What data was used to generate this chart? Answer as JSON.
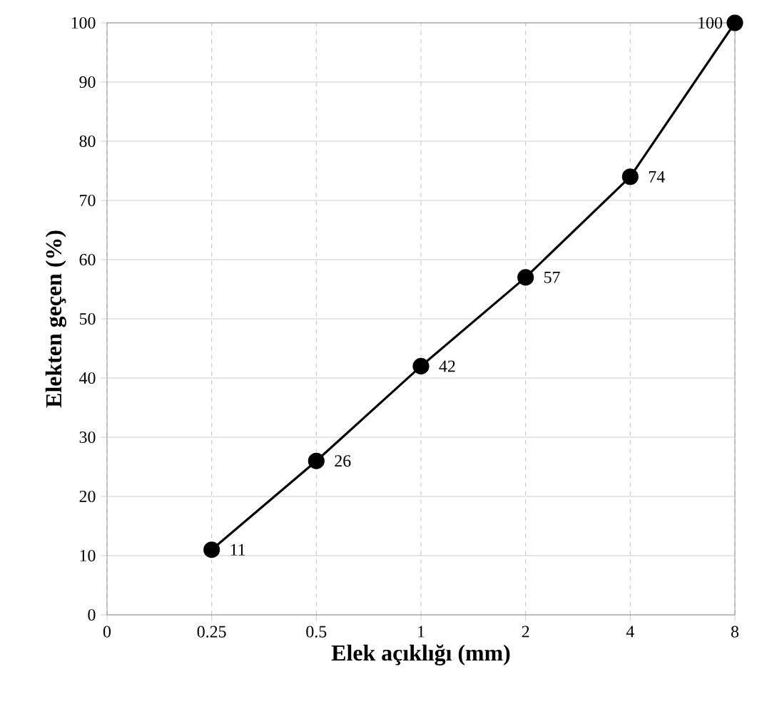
{
  "chart_data": {
    "type": "line",
    "xlabel": "Elek açıklığı (mm)",
    "ylabel": "Elekten geçen (%)",
    "categories": [
      "0",
      "0.25",
      "0.5",
      "1",
      "2",
      "4",
      "8"
    ],
    "values": [
      null,
      11,
      26,
      42,
      57,
      74,
      100
    ],
    "color": "#000000",
    "marker": "circle",
    "line_style": "solid",
    "data_labels": true,
    "grid": true,
    "ylim": [
      0,
      100
    ],
    "yticks": [
      0,
      10,
      20,
      30,
      40,
      50,
      60,
      70,
      80,
      90,
      100
    ]
  }
}
